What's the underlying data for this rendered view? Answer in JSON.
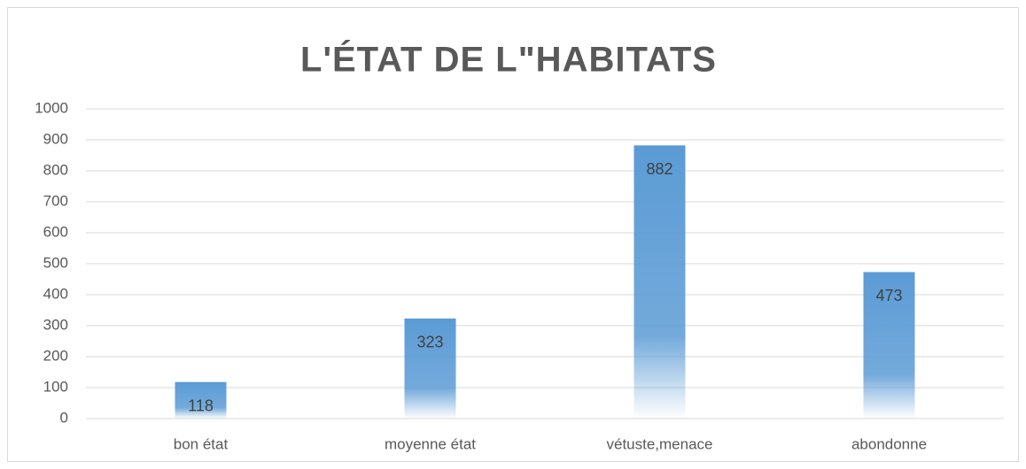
{
  "chart_data": {
    "type": "bar",
    "title": "L'ÉTAT DE L\"HABITATS",
    "categories": [
      "bon état",
      "moyenne état",
      "vétuste,menace",
      "abondonne"
    ],
    "values": [
      118,
      323,
      882,
      473
    ],
    "color": "#5b9bd5",
    "ylim": [
      0,
      1000
    ],
    "yticks": [
      0,
      100,
      200,
      300,
      400,
      500,
      600,
      700,
      800,
      900,
      1000
    ],
    "grid": true
  }
}
